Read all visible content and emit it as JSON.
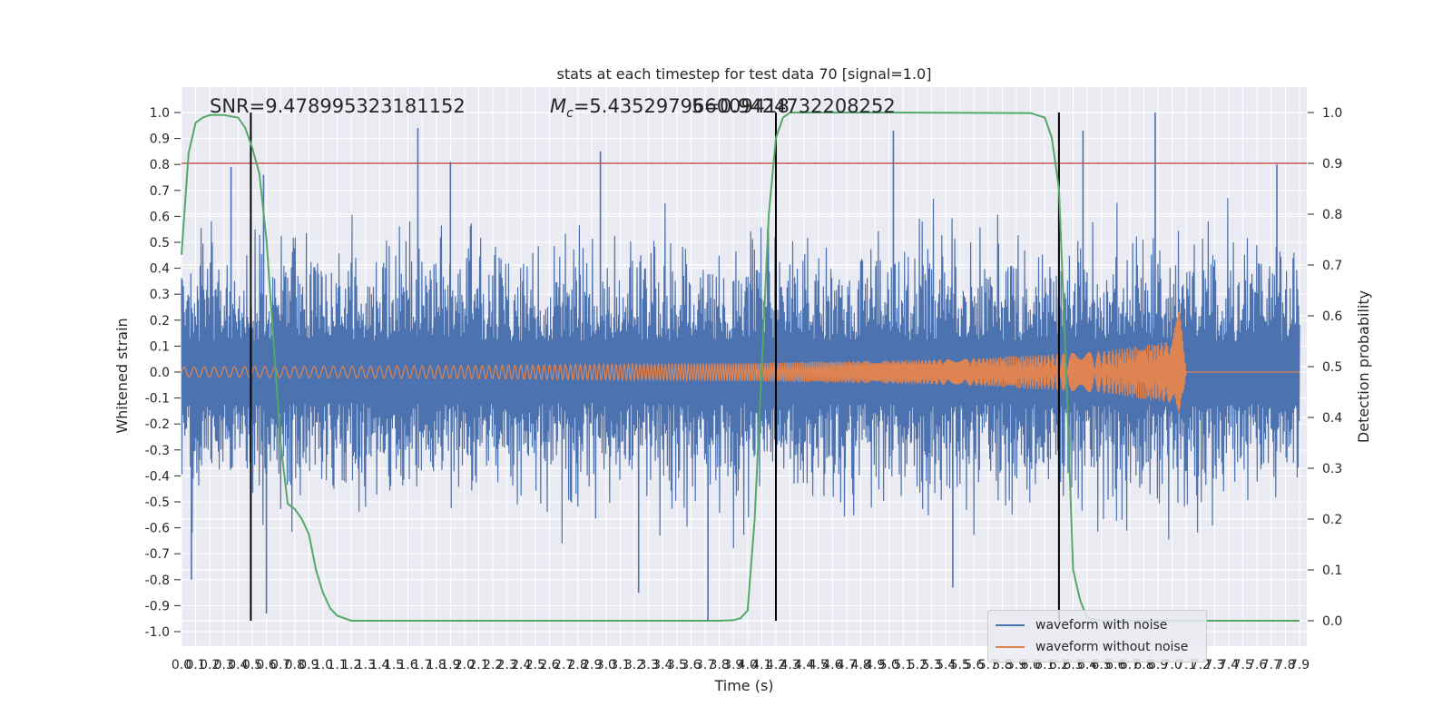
{
  "chart_data": {
    "type": "line",
    "title": "stats at each timestep for test data 70 [signal=1.0]",
    "xlabel": "Time (s)",
    "ylabel": "Whitened strain",
    "ylabel_right": "Detection probability",
    "xlim": [
      0.0,
      7.9
    ],
    "ylim": [
      -1.0,
      1.0
    ],
    "ylim_right": [
      0.0,
      1.0
    ],
    "grid": true,
    "legend_placement": "lower-right",
    "x_ticks": [
      "0.0",
      "0.1",
      "0.2",
      "0.3",
      "0.4",
      "0.5",
      "0.6",
      "0.7",
      "0.8",
      "0.9",
      "1.0",
      "1.1",
      "1.2",
      "1.3",
      "1.4",
      "1.5",
      "1.6",
      "1.7",
      "1.8",
      "1.9",
      "2.0",
      "2.1",
      "2.2",
      "2.3",
      "2.4",
      "2.5",
      "2.6",
      "2.7",
      "2.8",
      "2.9",
      "3.0",
      "3.1",
      "3.2",
      "3.3",
      "3.4",
      "3.5",
      "3.6",
      "3.7",
      "3.8",
      "3.9",
      "4.0",
      "4.1",
      "4.2",
      "4.3",
      "4.4",
      "4.5",
      "4.6",
      "4.7",
      "4.8",
      "4.9",
      "5.0",
      "5.1",
      "5.2",
      "5.3",
      "5.4",
      "5.5",
      "5.6",
      "5.7",
      "5.8",
      "5.9",
      "6.0",
      "6.1",
      "6.2",
      "6.3",
      "6.4",
      "6.5",
      "6.6",
      "6.7",
      "6.8",
      "6.9",
      "7.0",
      "7.1",
      "7.2",
      "7.3",
      "7.4",
      "7.5",
      "7.6",
      "7.7",
      "7.8",
      "7.9"
    ],
    "y_ticks": [
      "1.0",
      "0.9",
      "0.8",
      "0.7",
      "0.6",
      "0.5",
      "0.4",
      "0.3",
      "0.2",
      "0.1",
      "0.0",
      "-0.1",
      "-0.2",
      "-0.3",
      "-0.4",
      "-0.5",
      "-0.6",
      "-0.7",
      "-0.8",
      "-0.9",
      "-1.0"
    ],
    "y_ticks_right": [
      "1.0",
      "0.9",
      "0.8",
      "0.7",
      "0.6",
      "0.5",
      "0.4",
      "0.3",
      "0.2",
      "0.1",
      "0.0"
    ],
    "annotations": {
      "snr": "SNR=9.478995323181152",
      "mc": "=5.435297966009418",
      "mc_symbol": "M",
      "mc_sub": "c",
      "overlap": "5=0.9424732208252"
    },
    "threshold": {
      "y_right": 0.9,
      "color": "#c44e52"
    },
    "vlines_x": [
      0.49,
      4.2,
      6.2
    ],
    "series": [
      {
        "name": "waveform with noise",
        "color": "#4c72b0",
        "kind": "noise",
        "envelope_approx": 0.6,
        "peaks": [
          {
            "x": 0.35,
            "y": 0.79
          },
          {
            "x": 0.58,
            "y": 0.76
          },
          {
            "x": 1.67,
            "y": 0.94
          },
          {
            "x": 1.9,
            "y": 0.81
          },
          {
            "x": 2.96,
            "y": 0.85
          },
          {
            "x": 5.03,
            "y": 0.93
          },
          {
            "x": 6.37,
            "y": 0.93
          },
          {
            "x": 6.88,
            "y": 1.0
          },
          {
            "x": 7.74,
            "y": 0.8
          },
          {
            "x": 0.07,
            "y": -0.8
          },
          {
            "x": 0.6,
            "y": -0.93
          },
          {
            "x": 3.23,
            "y": -0.85
          },
          {
            "x": 3.72,
            "y": -0.96
          },
          {
            "x": 5.45,
            "y": -0.83
          }
        ]
      },
      {
        "name": "waveform without noise",
        "color": "#dd8452",
        "kind": "chirp",
        "amplitude_x": [
          0.0,
          2.0,
          4.0,
          5.5,
          6.5,
          7.0,
          7.05,
          7.1,
          7.9
        ],
        "amplitude_y": [
          0.02,
          0.025,
          0.035,
          0.05,
          0.08,
          0.12,
          0.25,
          0.0,
          0.0
        ],
        "merger_x": 7.05
      },
      {
        "name": "",
        "color": "#55a868",
        "kind": "probability",
        "axis": "right",
        "x": [
          0.0,
          0.05,
          0.1,
          0.15,
          0.2,
          0.3,
          0.4,
          0.45,
          0.5,
          0.55,
          0.6,
          0.65,
          0.7,
          0.75,
          0.8,
          0.85,
          0.9,
          0.95,
          1.0,
          1.05,
          1.1,
          1.2,
          1.5,
          2.0,
          3.0,
          3.5,
          3.8,
          3.9,
          3.95,
          4.0,
          4.05,
          4.1,
          4.15,
          4.2,
          4.25,
          4.3,
          4.35,
          4.4,
          4.5,
          5.0,
          6.0,
          6.1,
          6.15,
          6.2,
          6.25,
          6.3,
          6.35,
          6.4,
          6.5,
          7.0,
          7.9
        ],
        "y": [
          0.72,
          0.92,
          0.98,
          0.99,
          0.995,
          0.995,
          0.99,
          0.97,
          0.93,
          0.88,
          0.75,
          0.55,
          0.35,
          0.23,
          0.22,
          0.2,
          0.17,
          0.1,
          0.055,
          0.025,
          0.01,
          0.0,
          0.0,
          0.0,
          0.0,
          0.0,
          0.0,
          0.001,
          0.005,
          0.02,
          0.2,
          0.5,
          0.8,
          0.95,
          0.99,
          1.0,
          1.0,
          1.0,
          1.0,
          1.0,
          0.999,
          0.99,
          0.95,
          0.85,
          0.5,
          0.1,
          0.04,
          0.005,
          0.0,
          0.0,
          0.0
        ]
      }
    ]
  }
}
